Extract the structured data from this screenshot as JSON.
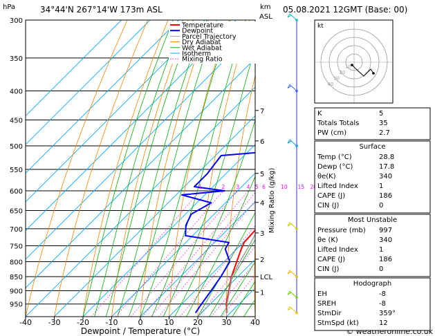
{
  "header": {
    "hpa_label": "hPa",
    "location": "34°44'N  267°14'W  173m  ASL",
    "km_label": "km",
    "asl_label": "ASL",
    "datetime": "05.08.2021  12GMT  (Base: 00)"
  },
  "footer": {
    "copyright": "© weatheronline.co.uk"
  },
  "chart_data": {
    "type": "skew-t",
    "xlabel": "Dewpoint / Temperature (°C)",
    "x_ticks": [
      -40,
      -30,
      -20,
      -10,
      0,
      10,
      20,
      30,
      40
    ],
    "pressure_levels": [
      300,
      350,
      400,
      450,
      500,
      550,
      600,
      650,
      700,
      750,
      800,
      850,
      900,
      950
    ],
    "p_range": [
      300,
      1000
    ],
    "t_range_at_bottom": [
      -40,
      40
    ],
    "km_ticks": [
      {
        "label": "7",
        "p": 433
      },
      {
        "label": "6",
        "p": 490
      },
      {
        "label": "5",
        "p": 559
      },
      {
        "label": "4",
        "p": 629
      },
      {
        "label": "3",
        "p": 712
      },
      {
        "label": "2",
        "p": 792
      },
      {
        "label": "LCL",
        "p": 850
      },
      {
        "label": "1",
        "p": 905
      }
    ],
    "mixing_ratio_axis_label": "Mixing Ratio (g/kg)",
    "mixing_ratio_values": [
      1,
      2,
      3,
      4,
      5,
      6,
      10,
      15,
      20,
      25
    ],
    "mixing_ratio_labels": [
      "1",
      "2",
      "3",
      "4",
      "5",
      "6",
      "10",
      "15",
      "20",
      "25"
    ],
    "legend": [
      {
        "name": "Temperature",
        "color": "#ff0000"
      },
      {
        "name": "Dewpoint",
        "color": "#0000ff"
      },
      {
        "name": "Parcel Trajectory",
        "color": "#a0a0a0"
      },
      {
        "name": "Dry Adiabat",
        "color": "#ff8000"
      },
      {
        "name": "Wet Adiabat",
        "color": "#00b000"
      },
      {
        "name": "Isotherm",
        "color": "#00aaff"
      },
      {
        "name": "Mixing Ratio",
        "color": "#ff00ff"
      }
    ],
    "series": [
      {
        "name": "Temperature",
        "points": [
          [
            985,
            29.0
          ],
          [
            950,
            25.5
          ],
          [
            900,
            21.8
          ],
          [
            850,
            17.8
          ],
          [
            800,
            14.4
          ],
          [
            760,
            11.6
          ],
          [
            740,
            10.3
          ],
          [
            700,
            9.8
          ],
          [
            650,
            7.0
          ],
          [
            620,
            5.2
          ],
          [
            600,
            3.6
          ],
          [
            550,
            -0.8
          ],
          [
            500,
            -5.0
          ],
          [
            450,
            -10.9
          ],
          [
            400,
            -16.5
          ],
          [
            350,
            -24.5
          ],
          [
            300,
            -33.0
          ]
        ]
      },
      {
        "name": "Dewpoint",
        "points": [
          [
            985,
            17.9
          ],
          [
            950,
            16.9
          ],
          [
            900,
            15.6
          ],
          [
            850,
            14.1
          ],
          [
            800,
            12.0
          ],
          [
            760,
            6.0
          ],
          [
            740,
            5.0
          ],
          [
            720,
            -12.5
          ],
          [
            690,
            -16.0
          ],
          [
            660,
            -18.0
          ],
          [
            630,
            -15.0
          ],
          [
            610,
            -28.0
          ],
          [
            600,
            -14.5
          ],
          [
            590,
            -26.5
          ],
          [
            560,
            -26.5
          ],
          [
            520,
            -28.0
          ],
          [
            505,
            -1.0
          ],
          [
            470,
            6.5
          ],
          [
            440,
            0.5
          ],
          [
            400,
            -8.0
          ],
          [
            350,
            -23.0
          ],
          [
            300,
            -43.0
          ]
        ]
      },
      {
        "name": "Parcel Trajectory",
        "points": [
          [
            985,
            29.0
          ],
          [
            950,
            25.8
          ],
          [
            900,
            22.0
          ],
          [
            850,
            18.0
          ],
          [
            800,
            15.5
          ],
          [
            750,
            13.2
          ],
          [
            700,
            10.4
          ],
          [
            650,
            7.2
          ],
          [
            600,
            3.5
          ],
          [
            550,
            -0.8
          ],
          [
            500,
            -5.8
          ],
          [
            450,
            -11.5
          ],
          [
            400,
            -17.8
          ],
          [
            350,
            -25.5
          ],
          [
            300,
            -34.0
          ]
        ]
      }
    ],
    "hodograph": {
      "label": "kt",
      "ring_labels": [
        "10",
        "20",
        "30",
        "40"
      ]
    },
    "wind_barbs": [
      {
        "p": 300,
        "color": "#00bfbf"
      },
      {
        "p": 400,
        "color": "#3366ff"
      },
      {
        "p": 500,
        "color": "#00a0e0"
      },
      {
        "p": 700,
        "color": "#c8c800"
      },
      {
        "p": 850,
        "color": "#e6b400"
      },
      {
        "p": 925,
        "color": "#6bd000"
      },
      {
        "p": 985,
        "color": "#e6c800"
      }
    ]
  },
  "indices": [
    {
      "label": "K",
      "value": "5"
    },
    {
      "label": "Totals Totals",
      "value": "35"
    },
    {
      "label": "PW (cm)",
      "value": "2.7"
    }
  ],
  "surface": {
    "title": "Surface",
    "rows": [
      {
        "label": "Temp (°C)",
        "value": "28.8"
      },
      {
        "label": "Dewp (°C)",
        "value": "17.8"
      },
      {
        "label": "θe(K)",
        "value": "340"
      },
      {
        "label": "Lifted Index",
        "value": "1"
      },
      {
        "label": "CAPE (J)",
        "value": "186"
      },
      {
        "label": "CIN (J)",
        "value": "0"
      }
    ]
  },
  "most_unstable": {
    "title": "Most Unstable",
    "rows": [
      {
        "label": "Pressure (mb)",
        "value": "997"
      },
      {
        "label": "θe (K)",
        "value": "340"
      },
      {
        "label": "Lifted Index",
        "value": "1"
      },
      {
        "label": "CAPE (J)",
        "value": "186"
      },
      {
        "label": "CIN (J)",
        "value": "0"
      }
    ]
  },
  "hodograph_table": {
    "title": "Hodograph",
    "rows": [
      {
        "label": "EH",
        "value": "-8"
      },
      {
        "label": "SREH",
        "value": "-8"
      },
      {
        "label": "StmDir",
        "value": "359°"
      },
      {
        "label": "StmSpd (kt)",
        "value": "12"
      }
    ]
  }
}
